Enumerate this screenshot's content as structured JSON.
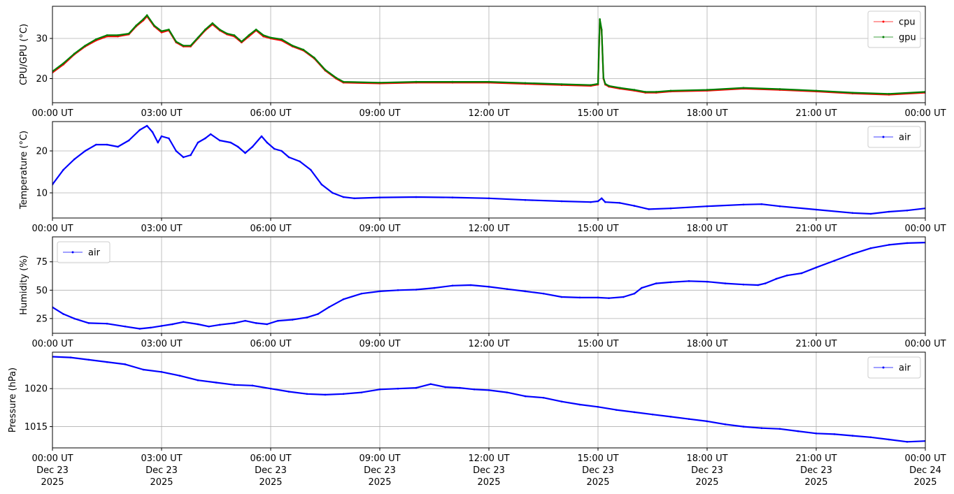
{
  "chart_data": [
    {
      "type": "line",
      "ylabel": "CPU/GPU (°C)",
      "x_unit": "hours since Dec 23 2025 00:00 UT",
      "xlim": [
        0,
        24
      ],
      "ylim": [
        14,
        38
      ],
      "yticks": [
        20,
        30
      ],
      "grid": true,
      "legend_position": "upper-right",
      "series": [
        {
          "name": "cpu",
          "color": "#ff0000",
          "x": [
            0,
            0.3,
            0.6,
            0.9,
            1.2,
            1.5,
            1.8,
            2.1,
            2.3,
            2.5,
            2.6,
            2.8,
            3.0,
            3.2,
            3.4,
            3.6,
            3.8,
            4.0,
            4.2,
            4.4,
            4.6,
            4.8,
            5.0,
            5.2,
            5.4,
            5.6,
            5.8,
            6.0,
            6.3,
            6.6,
            6.9,
            7.2,
            7.5,
            7.8,
            8.0,
            9,
            10,
            11,
            12,
            13,
            14,
            14.8,
            15.0,
            15.05,
            15.1,
            15.15,
            15.2,
            15.3,
            15.6,
            16,
            16.3,
            16.6,
            17,
            18,
            19,
            20,
            21,
            22,
            23,
            24
          ],
          "y": [
            21.5,
            23.5,
            26,
            28,
            29.5,
            30.5,
            30.5,
            31,
            33,
            34.5,
            35.5,
            33,
            31.5,
            32,
            29,
            28,
            28,
            30,
            32,
            33.5,
            32,
            31,
            30.5,
            29,
            30.5,
            32,
            30.5,
            30,
            29.5,
            28,
            27,
            25,
            22,
            20,
            19,
            18.8,
            19,
            19,
            19,
            18.7,
            18.4,
            18.2,
            18.5,
            34.5,
            32,
            20,
            18.5,
            18,
            17.5,
            17,
            16.5,
            16.5,
            16.8,
            17,
            17.5,
            17.2,
            16.8,
            16.3,
            16,
            16.5
          ]
        },
        {
          "name": "gpu",
          "color": "#008000",
          "x": [
            0,
            0.3,
            0.6,
            0.9,
            1.2,
            1.5,
            1.8,
            2.1,
            2.3,
            2.5,
            2.6,
            2.8,
            3.0,
            3.2,
            3.4,
            3.6,
            3.8,
            4.0,
            4.2,
            4.4,
            4.6,
            4.8,
            5.0,
            5.2,
            5.4,
            5.6,
            5.8,
            6.0,
            6.3,
            6.6,
            6.9,
            7.2,
            7.5,
            7.8,
            8.0,
            9,
            10,
            11,
            12,
            13,
            14,
            14.8,
            15.0,
            15.05,
            15.1,
            15.15,
            15.2,
            15.3,
            15.6,
            16,
            16.3,
            16.6,
            17,
            18,
            19,
            20,
            21,
            22,
            23,
            24
          ],
          "y": [
            21.8,
            23.8,
            26.2,
            28.2,
            29.8,
            30.8,
            30.8,
            31.2,
            33.2,
            34.8,
            35.8,
            33.2,
            31.8,
            32.2,
            29.2,
            28.2,
            28.2,
            30.2,
            32.2,
            33.8,
            32.2,
            31.2,
            30.8,
            29.2,
            30.8,
            32.2,
            30.8,
            30.2,
            29.8,
            28.2,
            27.2,
            25.2,
            22.2,
            20.2,
            19.2,
            19,
            19.2,
            19.2,
            19.2,
            18.9,
            18.6,
            18.4,
            18.7,
            34.8,
            32.2,
            20.2,
            18.7,
            18.2,
            17.7,
            17.2,
            16.7,
            16.7,
            17,
            17.2,
            17.7,
            17.4,
            17,
            16.5,
            16.2,
            16.7
          ]
        }
      ]
    },
    {
      "type": "line",
      "ylabel": "Temperature (°C)",
      "x_unit": "hours since Dec 23 2025 00:00 UT",
      "xlim": [
        0,
        24
      ],
      "ylim": [
        4,
        27
      ],
      "yticks": [
        10,
        20
      ],
      "grid": true,
      "legend_position": "upper-right",
      "series": [
        {
          "name": "air",
          "color": "#0000ff",
          "x": [
            0,
            0.3,
            0.6,
            0.9,
            1.2,
            1.5,
            1.8,
            2.1,
            2.4,
            2.6,
            2.75,
            2.9,
            3.0,
            3.2,
            3.4,
            3.6,
            3.8,
            4.0,
            4.2,
            4.35,
            4.6,
            4.9,
            5.1,
            5.3,
            5.5,
            5.75,
            5.9,
            6.1,
            6.3,
            6.5,
            6.8,
            7.1,
            7.4,
            7.7,
            8.0,
            8.3,
            9,
            10,
            11,
            12,
            13,
            14,
            14.8,
            15.0,
            15.1,
            15.2,
            15.6,
            16,
            16.4,
            17,
            18,
            19,
            19.5,
            20,
            21,
            22,
            22.5,
            23,
            23.5,
            24
          ],
          "y": [
            12,
            15.5,
            18,
            20,
            21.5,
            21.5,
            21,
            22.5,
            25,
            26,
            24.5,
            22,
            23.5,
            23,
            20,
            18.5,
            19,
            22,
            23,
            24,
            22.5,
            22,
            21,
            19.5,
            21,
            23.5,
            22,
            20.5,
            20,
            18.5,
            17.5,
            15.5,
            12,
            10,
            9,
            8.7,
            8.9,
            9,
            8.9,
            8.7,
            8.3,
            8,
            7.8,
            8,
            8.7,
            7.8,
            7.6,
            6.9,
            6.1,
            6.3,
            6.8,
            7.2,
            7.3,
            6.8,
            6,
            5.2,
            5,
            5.5,
            5.8,
            6.3
          ]
        }
      ]
    },
    {
      "type": "line",
      "ylabel": "Humidity (%)",
      "x_unit": "hours since Dec 23 2025 00:00 UT",
      "xlim": [
        0,
        24
      ],
      "ylim": [
        12,
        97
      ],
      "yticks": [
        25,
        50,
        75
      ],
      "grid": true,
      "legend_position": "upper-left",
      "series": [
        {
          "name": "air",
          "color": "#0000ff",
          "x": [
            0,
            0.3,
            0.6,
            1.0,
            1.5,
            2.0,
            2.4,
            2.7,
            3.0,
            3.3,
            3.6,
            4.0,
            4.3,
            4.6,
            5.0,
            5.3,
            5.6,
            5.9,
            6.2,
            6.6,
            7.0,
            7.3,
            7.6,
            8.0,
            8.5,
            9.0,
            9.5,
            10,
            10.5,
            11,
            11.5,
            12,
            12.5,
            13,
            13.5,
            14,
            14.5,
            15.0,
            15.3,
            15.7,
            16,
            16.2,
            16.6,
            17,
            17.5,
            18,
            18.5,
            19,
            19.4,
            19.6,
            19.9,
            20.2,
            20.6,
            21,
            21.5,
            22,
            22.5,
            23,
            23.5,
            24
          ],
          "y": [
            35,
            29,
            25,
            21,
            20.5,
            18,
            16,
            17,
            18.5,
            20,
            22,
            20,
            18,
            19.5,
            21,
            23,
            21,
            20,
            23,
            24,
            26,
            29,
            35,
            42,
            47,
            49,
            50,
            50.5,
            52,
            54,
            54.5,
            53,
            51,
            49,
            47,
            44,
            43.5,
            43.5,
            43,
            44,
            47,
            52,
            56,
            57,
            58,
            57.5,
            56,
            55,
            54.5,
            56,
            60,
            63,
            65,
            70,
            76,
            82,
            87,
            90,
            91.5,
            92
          ]
        }
      ]
    },
    {
      "type": "line",
      "ylabel": "Pressure (hPa)",
      "x_unit": "hours since Dec 23 2025 00:00 UT",
      "xlim": [
        0,
        24
      ],
      "ylim": [
        1012.2,
        1024.8
      ],
      "yticks": [
        1015,
        1020
      ],
      "grid": true,
      "legend_position": "upper-right",
      "series": [
        {
          "name": "air",
          "color": "#0000ff",
          "x": [
            0,
            0.5,
            1.0,
            1.5,
            2.0,
            2.5,
            3.0,
            3.5,
            4.0,
            4.5,
            5.0,
            5.5,
            6.0,
            6.5,
            7.0,
            7.5,
            8.0,
            8.5,
            9.0,
            9.5,
            10,
            10.4,
            10.8,
            11.2,
            11.6,
            12,
            12.5,
            13,
            13.5,
            14,
            14.5,
            15,
            15.5,
            16,
            16.5,
            17,
            17.5,
            18,
            18.5,
            19,
            19.5,
            20,
            20.5,
            21,
            21.5,
            22,
            22.5,
            23,
            23.5,
            24
          ],
          "y": [
            1024.2,
            1024.1,
            1023.8,
            1023.5,
            1023.2,
            1022.5,
            1022.2,
            1021.7,
            1021.1,
            1020.8,
            1020.5,
            1020.4,
            1020.0,
            1019.6,
            1019.3,
            1019.2,
            1019.3,
            1019.5,
            1019.9,
            1020.0,
            1020.1,
            1020.6,
            1020.2,
            1020.1,
            1019.9,
            1019.8,
            1019.5,
            1019.0,
            1018.8,
            1018.3,
            1017.9,
            1017.6,
            1017.2,
            1016.9,
            1016.6,
            1016.3,
            1016.0,
            1015.7,
            1015.3,
            1015.0,
            1014.8,
            1014.7,
            1014.4,
            1014.1,
            1014.0,
            1013.8,
            1013.6,
            1013.3,
            1013.0,
            1013.1
          ]
        }
      ]
    }
  ],
  "x_ticks": {
    "hours": [
      0,
      3,
      6,
      9,
      12,
      15,
      18,
      21,
      24
    ],
    "labels": [
      "00:00 UT",
      "03:00 UT",
      "06:00 UT",
      "09:00 UT",
      "12:00 UT",
      "15:00 UT",
      "18:00 UT",
      "21:00 UT",
      "00:00 UT"
    ],
    "dates": [
      "Dec 23",
      "Dec 23",
      "Dec 23",
      "Dec 23",
      "Dec 23",
      "Dec 23",
      "Dec 23",
      "Dec 23",
      "Dec 24"
    ],
    "years": [
      "2025",
      "2025",
      "2025",
      "2025",
      "2025",
      "2025",
      "2025",
      "2025",
      "2025"
    ]
  }
}
